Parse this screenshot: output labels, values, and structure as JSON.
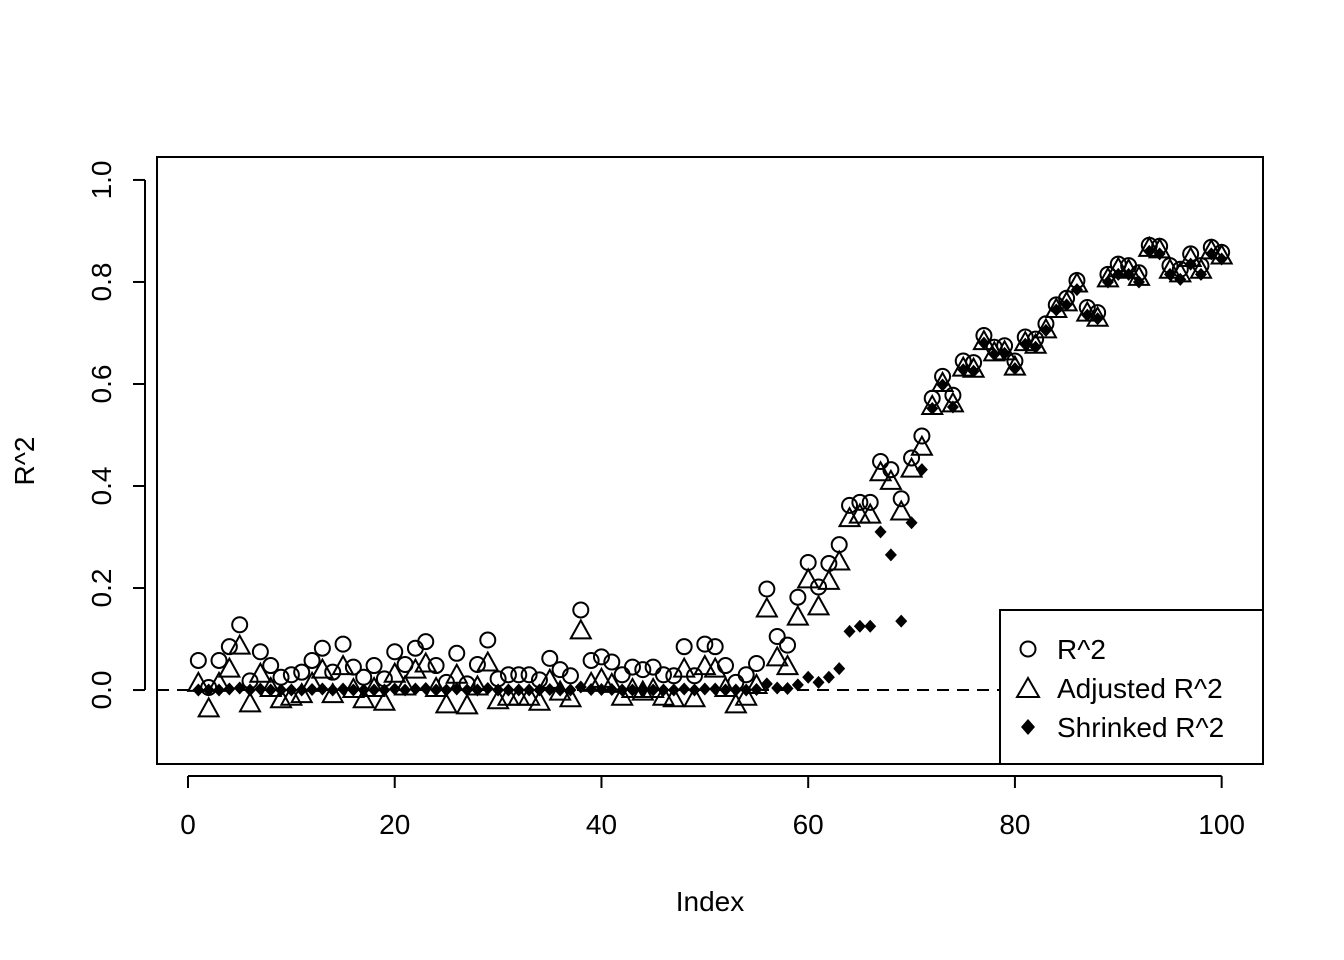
{
  "chart_data": {
    "type": "scatter",
    "title": "",
    "xlabel": "Index",
    "ylabel": "R^2",
    "xlim": [
      -3,
      104
    ],
    "ylim": [
      -0.145,
      1.045
    ],
    "xticks": [
      "0",
      "20",
      "40",
      "60",
      "80",
      "100"
    ],
    "xtick_values": [
      0,
      20,
      40,
      60,
      80,
      100
    ],
    "yticks": [
      "0.0",
      "0.2",
      "0.4",
      "0.6",
      "0.8",
      "1.0"
    ],
    "ytick_values": [
      0,
      0.2,
      0.4,
      0.6,
      0.8,
      1.0
    ],
    "reference_line": {
      "y": 0,
      "style": "dashed"
    },
    "legend_position": "bottom-right",
    "x": [
      1,
      2,
      3,
      4,
      5,
      6,
      7,
      8,
      9,
      10,
      11,
      12,
      13,
      14,
      15,
      16,
      17,
      18,
      19,
      20,
      21,
      22,
      23,
      24,
      25,
      26,
      27,
      28,
      29,
      30,
      31,
      32,
      33,
      34,
      35,
      36,
      37,
      38,
      39,
      40,
      41,
      42,
      43,
      44,
      45,
      46,
      47,
      48,
      49,
      50,
      51,
      52,
      53,
      54,
      55,
      56,
      57,
      58,
      59,
      60,
      61,
      62,
      63,
      64,
      65,
      66,
      67,
      68,
      69,
      70,
      71,
      72,
      73,
      74,
      75,
      76,
      77,
      78,
      79,
      80,
      81,
      82,
      83,
      84,
      85,
      86,
      87,
      88,
      89,
      90,
      91,
      92,
      93,
      94,
      95,
      96,
      97,
      98,
      99,
      100
    ],
    "series": [
      {
        "name": "R^2",
        "marker": "circle",
        "values": [
          0.058,
          0.005,
          0.058,
          0.085,
          0.128,
          0.018,
          0.075,
          0.048,
          0.025,
          0.03,
          0.035,
          0.058,
          0.082,
          0.035,
          0.09,
          0.045,
          0.025,
          0.048,
          0.022,
          0.075,
          0.05,
          0.082,
          0.095,
          0.048,
          0.015,
          0.072,
          0.012,
          0.05,
          0.098,
          0.022,
          0.03,
          0.03,
          0.03,
          0.02,
          0.062,
          0.04,
          0.028,
          0.157,
          0.058,
          0.065,
          0.055,
          0.03,
          0.045,
          0.04,
          0.045,
          0.03,
          0.028,
          0.085,
          0.028,
          0.09,
          0.085,
          0.048,
          0.015,
          0.03,
          0.052,
          0.198,
          0.105,
          0.088,
          0.182,
          0.25,
          0.202,
          0.248,
          0.285,
          0.362,
          0.368,
          0.368,
          0.448,
          0.432,
          0.375,
          0.455,
          0.498,
          0.572,
          0.615,
          0.578,
          0.645,
          0.642,
          0.695,
          0.672,
          0.675,
          0.645,
          0.692,
          0.688,
          0.718,
          0.755,
          0.768,
          0.803,
          0.75,
          0.74,
          0.815,
          0.835,
          0.832,
          0.818,
          0.872,
          0.87,
          0.832,
          0.825,
          0.855,
          0.832,
          0.868,
          0.858
        ]
      },
      {
        "name": "Adjusted R^2",
        "marker": "triangle",
        "values": [
          0.012,
          -0.038,
          0.012,
          0.04,
          0.085,
          -0.028,
          0.03,
          0.002,
          -0.02,
          -0.015,
          -0.01,
          0.012,
          0.038,
          -0.01,
          0.045,
          0.0,
          -0.02,
          0.002,
          -0.025,
          0.03,
          0.005,
          0.038,
          0.05,
          0.002,
          -0.03,
          0.028,
          -0.032,
          0.005,
          0.052,
          -0.022,
          -0.015,
          -0.015,
          -0.015,
          -0.025,
          0.018,
          -0.005,
          -0.018,
          0.115,
          0.012,
          0.02,
          0.01,
          -0.015,
          0.0,
          -0.005,
          0.0,
          -0.015,
          -0.018,
          0.04,
          -0.018,
          0.045,
          0.04,
          0.002,
          -0.03,
          -0.015,
          0.008,
          0.158,
          0.062,
          0.045,
          0.142,
          0.215,
          0.162,
          0.212,
          0.25,
          0.335,
          0.342,
          0.342,
          0.425,
          0.408,
          0.348,
          0.432,
          0.475,
          0.555,
          0.6,
          0.56,
          0.63,
          0.628,
          0.682,
          0.66,
          0.662,
          0.632,
          0.68,
          0.675,
          0.705,
          0.745,
          0.758,
          0.795,
          0.738,
          0.728,
          0.805,
          0.825,
          0.822,
          0.808,
          0.865,
          0.862,
          0.822,
          0.815,
          0.845,
          0.822,
          0.86,
          0.85
        ]
      },
      {
        "name": "Shrinked R^2",
        "marker": "diamond",
        "values": [
          0.0,
          0.0,
          0.0,
          0.002,
          0.004,
          0.0,
          0.002,
          0.0,
          0.0,
          0.0,
          0.0,
          0.001,
          0.002,
          0.0,
          0.002,
          0.0,
          0.0,
          0.0,
          0.0,
          0.002,
          0.0,
          0.002,
          0.003,
          0.0,
          0.0,
          0.002,
          0.0,
          0.0,
          0.003,
          0.0,
          0.0,
          0.0,
          0.0,
          0.0,
          0.001,
          0.0,
          0.0,
          0.006,
          0.001,
          0.001,
          0.001,
          0.0,
          0.0,
          0.0,
          0.0,
          0.0,
          0.0,
          0.002,
          0.0,
          0.002,
          0.002,
          0.0,
          0.0,
          0.0,
          0.001,
          0.012,
          0.004,
          0.003,
          0.01,
          0.025,
          0.015,
          0.025,
          0.042,
          0.115,
          0.125,
          0.125,
          0.31,
          0.265,
          0.135,
          0.328,
          0.432,
          0.552,
          0.598,
          0.555,
          0.628,
          0.625,
          0.68,
          0.658,
          0.66,
          0.63,
          0.678,
          0.672,
          0.705,
          0.745,
          0.755,
          0.785,
          0.735,
          0.728,
          0.8,
          0.815,
          0.815,
          0.8,
          0.86,
          0.855,
          0.815,
          0.805,
          0.835,
          0.815,
          0.855,
          0.845
        ]
      }
    ]
  }
}
